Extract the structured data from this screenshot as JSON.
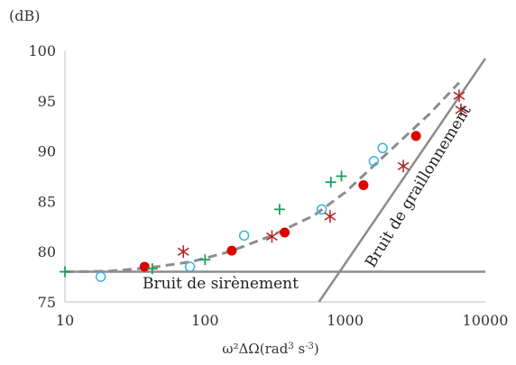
{
  "chart_data": {
    "type": "scatter",
    "ylabel": "(dB)",
    "xlabel_parts": {
      "base": "ω²ΔΩ(rad",
      "sup1": "3",
      "mid": " s",
      "sup2": "-3",
      "end": ")"
    },
    "x_scale": "log",
    "xlim": [
      10,
      10000
    ],
    "ylim": [
      75,
      100
    ],
    "x_ticks": [
      "10",
      "100",
      "1000",
      "10000"
    ],
    "x_tick_values": [
      10,
      100,
      1000,
      10000
    ],
    "y_ticks": [
      "75",
      "80",
      "85",
      "90",
      "95",
      "100"
    ],
    "y_tick_values": [
      75,
      80,
      85,
      90,
      95,
      100
    ],
    "grid": false,
    "colors": {
      "filled_circles": "#e00000",
      "open_circles": "#3ab4dc",
      "plus": "#1fa05a",
      "star": "#b22222",
      "lines": "#8c8c8c",
      "dashed": "#8c8c8c"
    },
    "series": [
      {
        "marker": "filled-circle",
        "x": [
          37,
          155,
          370,
          1350,
          3200
        ],
        "y": [
          78.5,
          80.1,
          81.9,
          86.6,
          91.5
        ]
      },
      {
        "marker": "open-circle",
        "x": [
          18,
          78,
          190,
          680,
          1600,
          1850
        ],
        "y": [
          77.5,
          78.5,
          81.6,
          84.2,
          89.0,
          90.3
        ]
      },
      {
        "marker": "plus",
        "x": [
          10,
          42,
          100,
          340,
          790,
          940
        ],
        "y": [
          78.0,
          78.3,
          79.2,
          84.2,
          86.9,
          87.5
        ]
      },
      {
        "marker": "star",
        "x": [
          70,
          300,
          780,
          2600,
          6500,
          6700
        ],
        "y": [
          80.0,
          81.5,
          83.5,
          88.5,
          95.5,
          94.1
        ]
      }
    ],
    "dashed_curve": {
      "x": [
        10,
        20,
        40,
        80,
        150,
        300,
        600,
        1000,
        2000,
        4000,
        6500
      ],
      "y": [
        78.0,
        78.05,
        78.4,
        79.0,
        80.0,
        81.6,
        83.6,
        85.9,
        89.8,
        93.7,
        96.8
      ]
    },
    "reference_lines": [
      {
        "label": "Bruit de sirènement",
        "x": [
          10,
          10000
        ],
        "y": [
          78,
          78
        ]
      },
      {
        "label": "Bruit de graillonnement",
        "x": [
          650,
          10000
        ],
        "y": [
          75,
          99.2
        ]
      }
    ]
  }
}
